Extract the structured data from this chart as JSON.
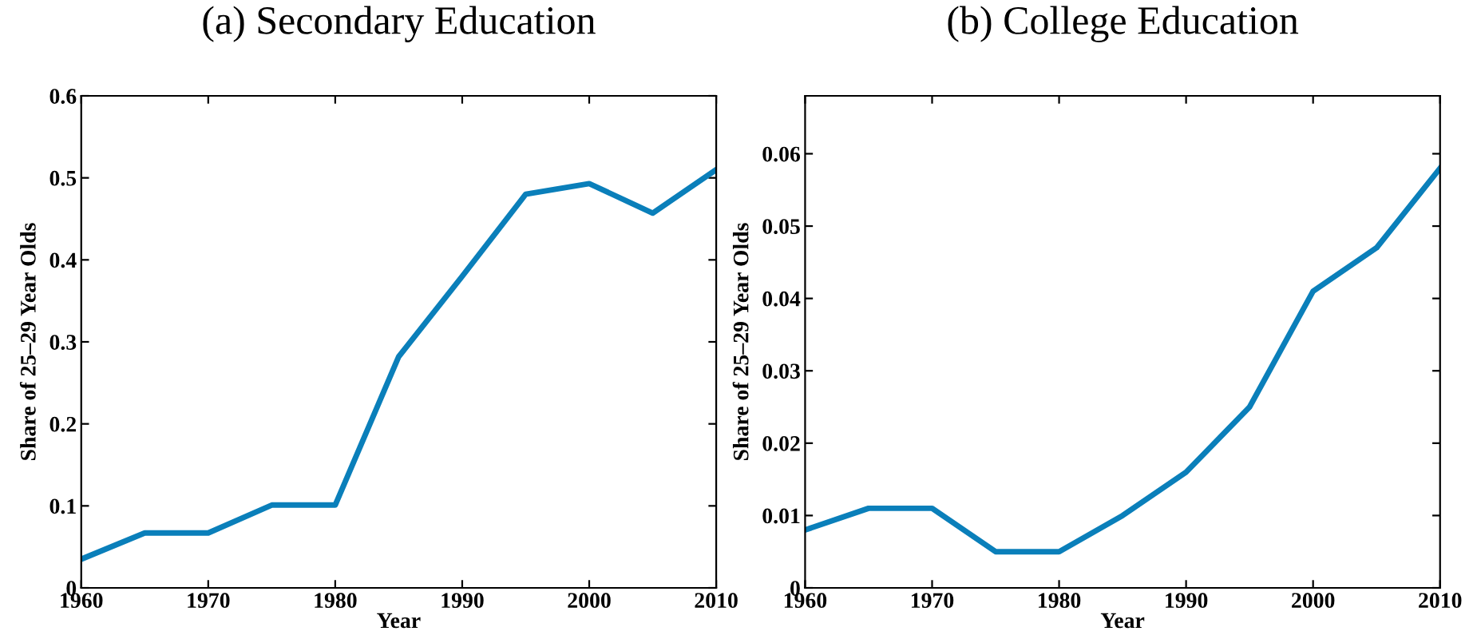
{
  "chart_data": [
    {
      "type": "line",
      "title": "(a) Secondary Education",
      "xlabel": "Year",
      "ylabel": "Share of 25–29 Year Olds",
      "x": [
        1960,
        1965,
        1970,
        1975,
        1980,
        1985,
        1990,
        1995,
        2000,
        2005,
        2010
      ],
      "series": [
        {
          "color": "#0a7fba",
          "values": [
            0.035,
            0.067,
            0.067,
            0.101,
            0.101,
            0.282,
            0.38,
            0.48,
            0.493,
            0.457,
            0.51
          ]
        }
      ],
      "xlim": [
        1960,
        2010
      ],
      "xticks": [
        1960,
        1970,
        1980,
        1990,
        2000,
        2010
      ],
      "ylim": [
        0,
        0.6
      ],
      "yticks": [
        0,
        0.1,
        0.2,
        0.3,
        0.4,
        0.5,
        0.6
      ],
      "grid": false,
      "marker": "none",
      "line_style": "solid"
    },
    {
      "type": "line",
      "title": "(b) College Education",
      "xlabel": "Year",
      "ylabel": "Share of 25–29 Year Olds",
      "x": [
        1960,
        1965,
        1970,
        1975,
        1980,
        1985,
        1990,
        1995,
        2000,
        2005,
        2010
      ],
      "series": [
        {
          "color": "#0a7fba",
          "values": [
            0.008,
            0.011,
            0.011,
            0.005,
            0.005,
            0.01,
            0.016,
            0.025,
            0.041,
            0.047,
            0.058
          ]
        }
      ],
      "xlim": [
        1960,
        2010
      ],
      "xticks": [
        1960,
        1970,
        1980,
        1990,
        2000,
        2010
      ],
      "ylim": [
        0,
        0.068
      ],
      "yticks": [
        0,
        0.01,
        0.02,
        0.03,
        0.04,
        0.05,
        0.06
      ],
      "grid": false,
      "marker": "none",
      "line_style": "solid"
    }
  ]
}
